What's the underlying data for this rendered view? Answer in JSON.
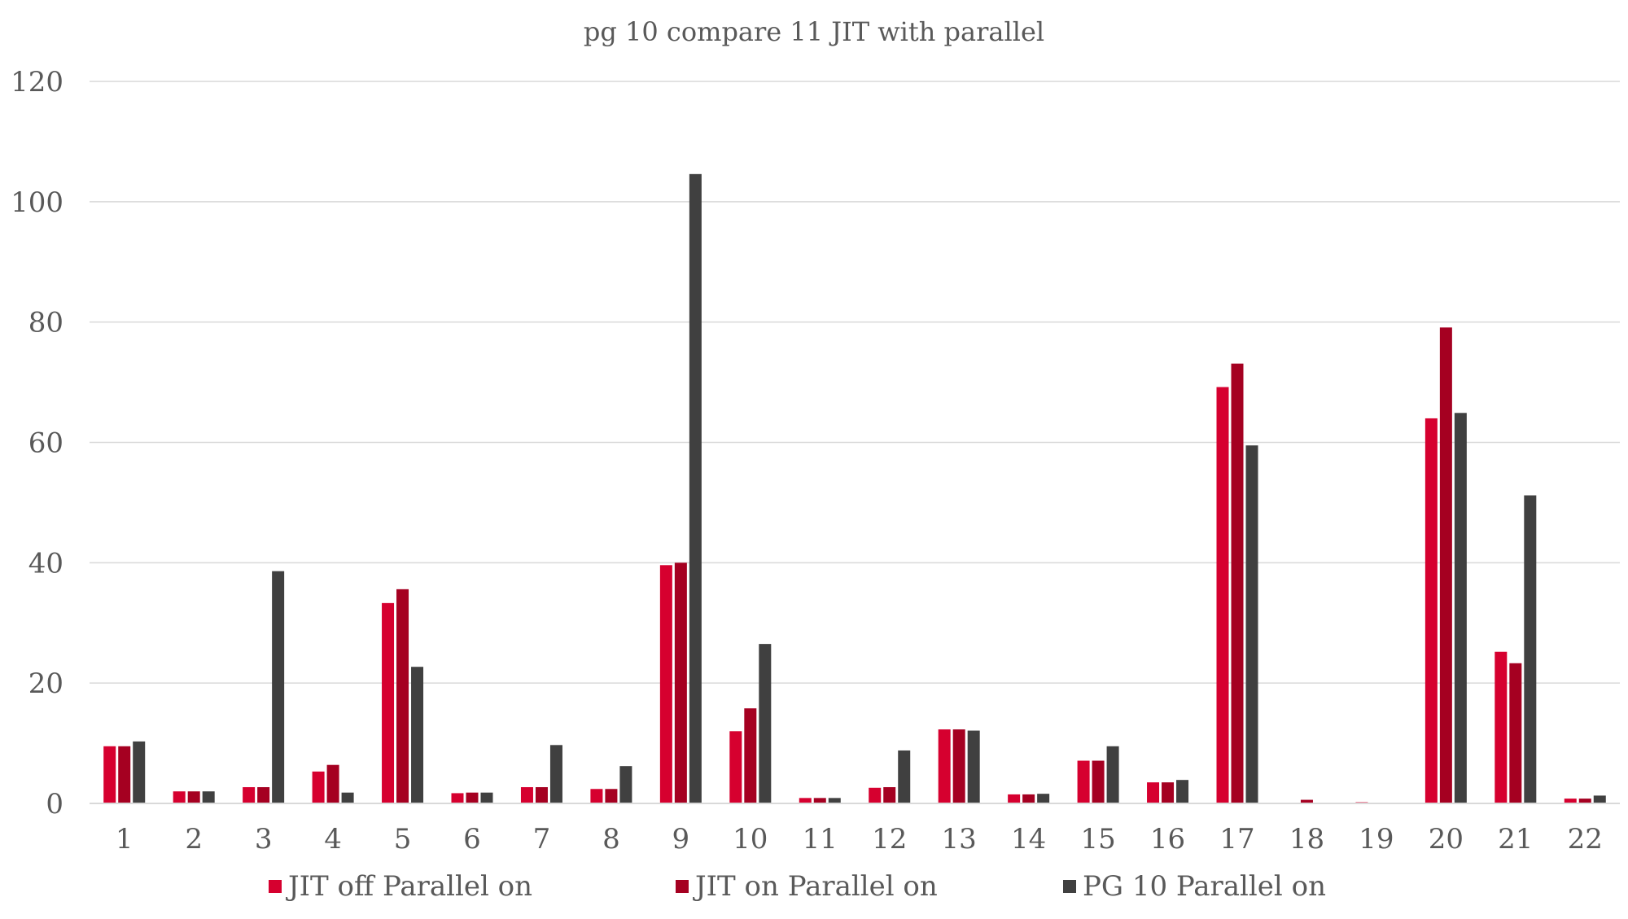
{
  "chart_data": {
    "type": "bar",
    "title": "pg 10 compare 11 JIT with parallel",
    "xlabel": "",
    "ylabel": "",
    "ylim": [
      0,
      120
    ],
    "yticks": [
      0,
      20,
      40,
      60,
      80,
      100,
      120
    ],
    "grid": true,
    "legend_position": "bottom",
    "categories": [
      "1",
      "2",
      "3",
      "4",
      "5",
      "6",
      "7",
      "8",
      "9",
      "10",
      "11",
      "12",
      "13",
      "14",
      "15",
      "16",
      "17",
      "18",
      "19",
      "20",
      "21",
      "22"
    ],
    "series": [
      {
        "name": "JIT off Parallel on",
        "color": "#D6002F",
        "values": [
          9.5,
          2.0,
          2.7,
          5.3,
          33.3,
          1.7,
          2.7,
          2.4,
          39.6,
          12.0,
          0.9,
          2.6,
          12.3,
          1.5,
          7.1,
          3.5,
          69.2,
          0.0,
          0.2,
          64.0,
          25.2,
          0.8
        ]
      },
      {
        "name": "JIT on Parallel on",
        "color": "#A50021",
        "values": [
          9.5,
          2.0,
          2.7,
          6.4,
          35.6,
          1.8,
          2.7,
          2.4,
          40.0,
          15.8,
          0.9,
          2.7,
          12.3,
          1.5,
          7.1,
          3.5,
          73.1,
          0.6,
          0.0,
          79.1,
          23.3,
          0.8
        ]
      },
      {
        "name": "PG 10 Parallel on",
        "color": "#404040",
        "values": [
          10.3,
          2.0,
          38.6,
          1.8,
          22.7,
          1.8,
          9.7,
          6.2,
          104.6,
          26.5,
          0.9,
          8.8,
          12.1,
          1.6,
          9.5,
          3.9,
          59.5,
          0.0,
          0.0,
          64.9,
          51.2,
          1.3
        ]
      }
    ]
  }
}
